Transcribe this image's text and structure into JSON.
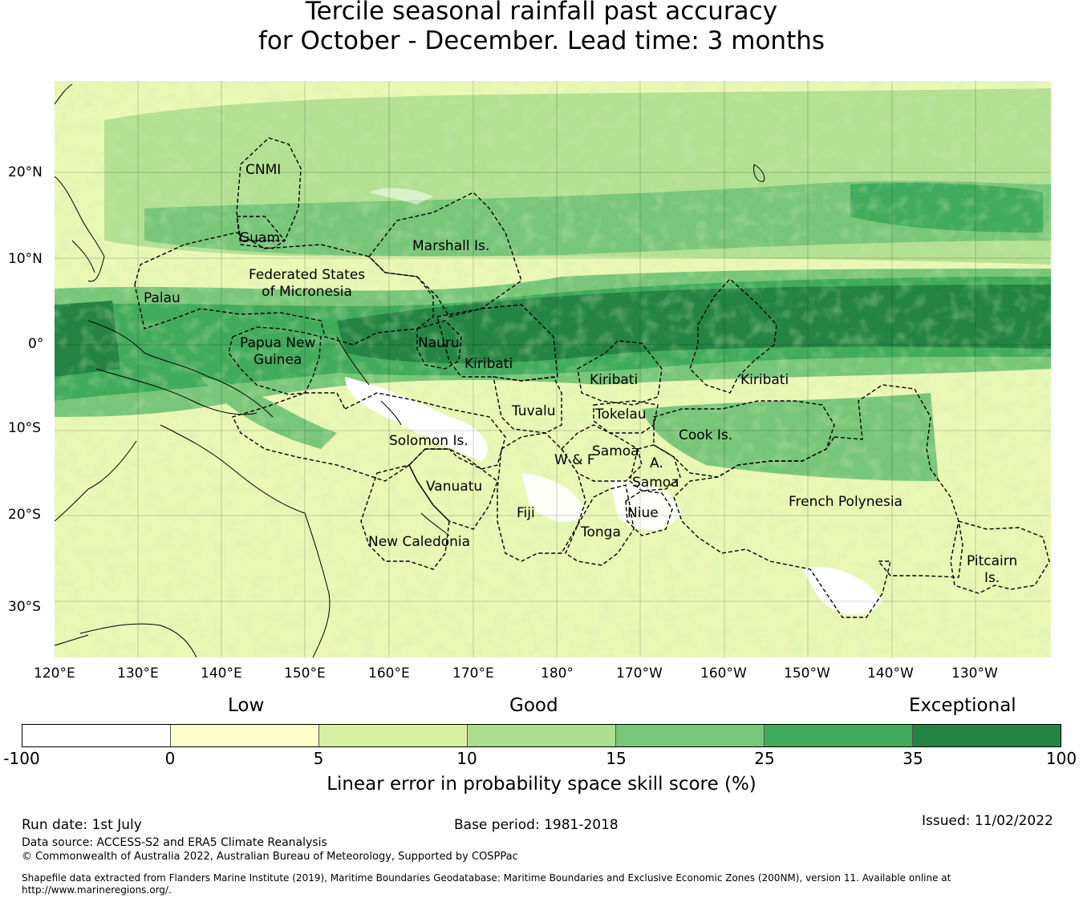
{
  "title": {
    "line1": "Tercile seasonal rainfall past accuracy",
    "line2": "for October - December. Lead time: 3 months"
  },
  "map": {
    "lon_ticks": [
      "120°E",
      "130°E",
      "140°E",
      "150°E",
      "160°E",
      "170°E",
      "180°",
      "170°W",
      "160°W",
      "150°W",
      "140°W",
      "130°W"
    ],
    "lat_ticks": [
      "20°N",
      "10°N",
      "0°",
      "10°S",
      "20°S",
      "30°S"
    ],
    "regions": [
      {
        "name": "CNMI",
        "label": "CNMI"
      },
      {
        "name": "guam",
        "label": "Guam"
      },
      {
        "name": "marshall",
        "label": "Marshall Is."
      },
      {
        "name": "fsm",
        "label": "Federated States\nof Micronesia"
      },
      {
        "name": "palau",
        "label": "Palau"
      },
      {
        "name": "png",
        "label": "Papua New\nGuinea"
      },
      {
        "name": "nauru",
        "label": "Nauru"
      },
      {
        "name": "kiribati-w",
        "label": "Kiribati"
      },
      {
        "name": "kiribati-c",
        "label": "Kiribati"
      },
      {
        "name": "kiribati-e",
        "label": "Kiribati"
      },
      {
        "name": "tuvalu",
        "label": "Tuvalu"
      },
      {
        "name": "tokelau",
        "label": "Tokelau"
      },
      {
        "name": "solomon",
        "label": "Solomon Is."
      },
      {
        "name": "samoa",
        "label": "Samoa"
      },
      {
        "name": "wf",
        "label": "W & F"
      },
      {
        "name": "asamoa",
        "label": "A.\nSamoa"
      },
      {
        "name": "cook",
        "label": "Cook Is."
      },
      {
        "name": "vanuatu",
        "label": "Vanuatu"
      },
      {
        "name": "fiji",
        "label": "Fiji"
      },
      {
        "name": "niue",
        "label": "Niue"
      },
      {
        "name": "tonga",
        "label": "Tonga"
      },
      {
        "name": "fp",
        "label": "French Polynesia"
      },
      {
        "name": "newcal",
        "label": "New Caledonia"
      },
      {
        "name": "pitcairn",
        "label": "Pitcairn\nIs."
      }
    ]
  },
  "colorbar": {
    "categories": [
      "Low",
      "Good",
      "Exceptional"
    ],
    "ticks": [
      "-100",
      "0",
      "5",
      "10",
      "15",
      "25",
      "35",
      "100"
    ],
    "colors": [
      "#ffffff",
      "#ffffcc",
      "#d9f0a3",
      "#addd8e",
      "#78c679",
      "#41ab5d",
      "#238443"
    ],
    "label": "Linear error in probability space skill score (%)"
  },
  "footer": {
    "run_date": "Run date: 1st July",
    "base_period": "Base period: 1981-2018",
    "issued": "Issued: 11/02/2022",
    "data_source": "Data source: ACCESS-S2 and ERA5 Climate Reanalysis",
    "copyright": "© Commonwealth of Australia 2022, Australian Bureau of Meteorology, Supported by COSPPac",
    "shapefile": "Shapefile data extracted from Flanders Marine Institute (2019), Maritime Boundaries Geodatabase: Maritime Boundaries and Exclusive Economic Zones (200NM), version 11. Available online at http://www.marineregions.org/."
  }
}
